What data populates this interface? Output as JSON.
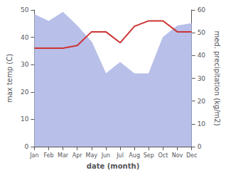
{
  "chart_data": {
    "type": "line",
    "xlabel": "date (month)",
    "ylabel": "max temp (C)",
    "y2label": "med. precipitation (kg/m2)",
    "categories": [
      "Jan",
      "Feb",
      "Mar",
      "Apr",
      "May",
      "Jun",
      "Jul",
      "Aug",
      "Sep",
      "Oct",
      "Nov",
      "Dec"
    ],
    "series": [
      {
        "type": "area",
        "axis": "y2",
        "color": "#b8bfe8",
        "values": [
          58,
          55,
          59,
          53,
          46,
          32,
          37,
          32,
          32,
          48,
          53,
          54
        ]
      },
      {
        "type": "line",
        "color": "#cc3333",
        "values": [
          36,
          36,
          36,
          37,
          42,
          42,
          38,
          44,
          46,
          46,
          42,
          42
        ]
      }
    ],
    "ylim": [
      0,
      50
    ],
    "yticks": [
      0,
      10,
      20,
      30,
      40,
      50
    ],
    "y2lim": [
      0,
      60
    ],
    "y2ticks": [
      0,
      10,
      20,
      30,
      40,
      50,
      60
    ],
    "grid": false
  }
}
